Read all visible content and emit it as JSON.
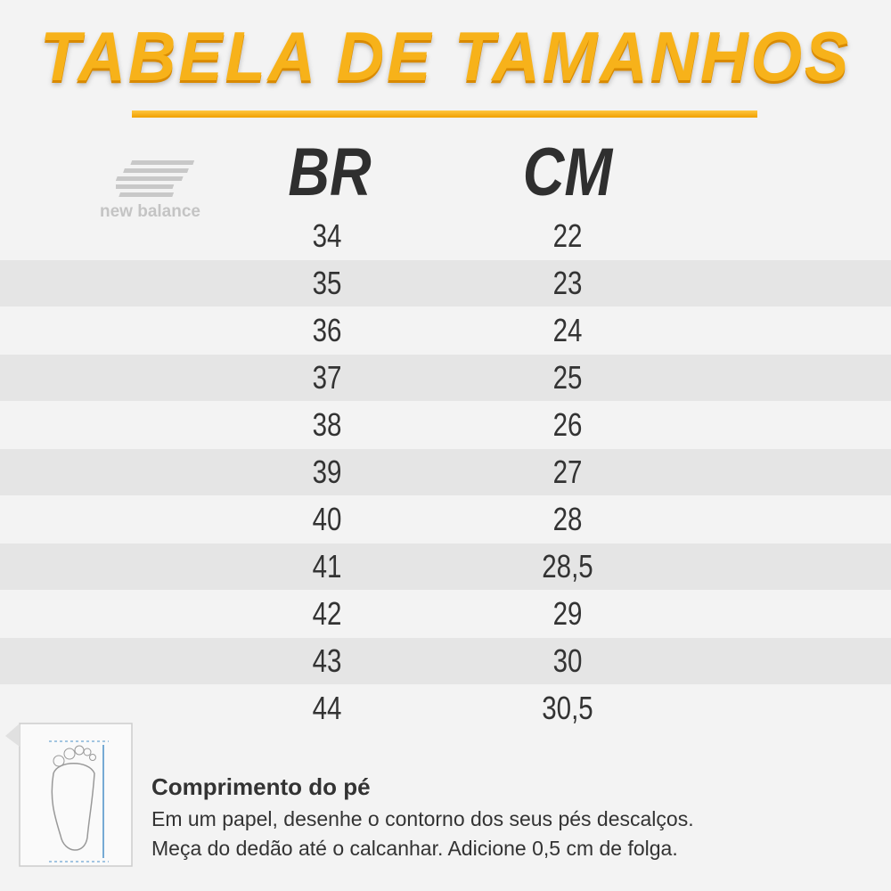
{
  "header": {
    "title": "TABELA DE TAMANHOS",
    "brand": "new balance"
  },
  "table": {
    "columns": [
      "BR",
      "CM"
    ],
    "rows": [
      [
        "34",
        "22"
      ],
      [
        "35",
        "23"
      ],
      [
        "36",
        "24"
      ],
      [
        "37",
        "25"
      ],
      [
        "38",
        "26"
      ],
      [
        "39",
        "27"
      ],
      [
        "40",
        "28"
      ],
      [
        "41",
        "28,5"
      ],
      [
        "42",
        "29"
      ],
      [
        "43",
        "30"
      ],
      [
        "44",
        "30,5"
      ]
    ]
  },
  "footer": {
    "heading": "Comprimento do pé",
    "lines": [
      "Em um papel, desenhe o contorno dos seus pés descalços.",
      "Meça do dedão até o calcanhar. Adicione 0,5 cm de folga."
    ]
  }
}
